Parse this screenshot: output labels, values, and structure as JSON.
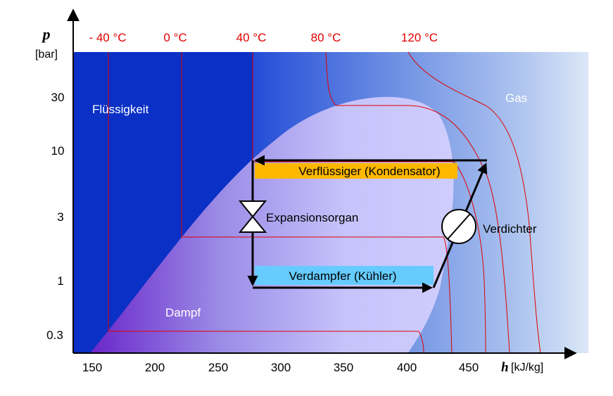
{
  "chart_data": {
    "type": "diagram",
    "x_axis": {
      "symbol": "h",
      "unit": "[kJ/kg]",
      "ticks": [
        "150",
        "200",
        "250",
        "300",
        "350",
        "400",
        "450"
      ]
    },
    "y_axis": {
      "symbol": "p",
      "unit": "[bar]",
      "ticks": [
        "30",
        "10",
        "3",
        "1",
        "0.3"
      ]
    },
    "isotherms": [
      "- 40 °C",
      "0 °C",
      "40 °C",
      "80 °C",
      "120 °C"
    ],
    "regions": {
      "liquid": "Flüssigkeit",
      "vapor": "Dampf",
      "gas": "Gas"
    },
    "components": {
      "condenser": "Verflüssiger  (Kondensator)",
      "evaporator": "Verdampfer  (Kühler)",
      "expansion": "Expansionsorgan",
      "compressor": "Verdichter"
    },
    "colors": {
      "liquid": "#0033cc",
      "dome_left": "#6a2fc8",
      "dome_right": "#c8c8ff",
      "isotherm": "#e00000",
      "condenser_bar": "#ffb800",
      "evaporator_bar": "#66ccff"
    }
  }
}
